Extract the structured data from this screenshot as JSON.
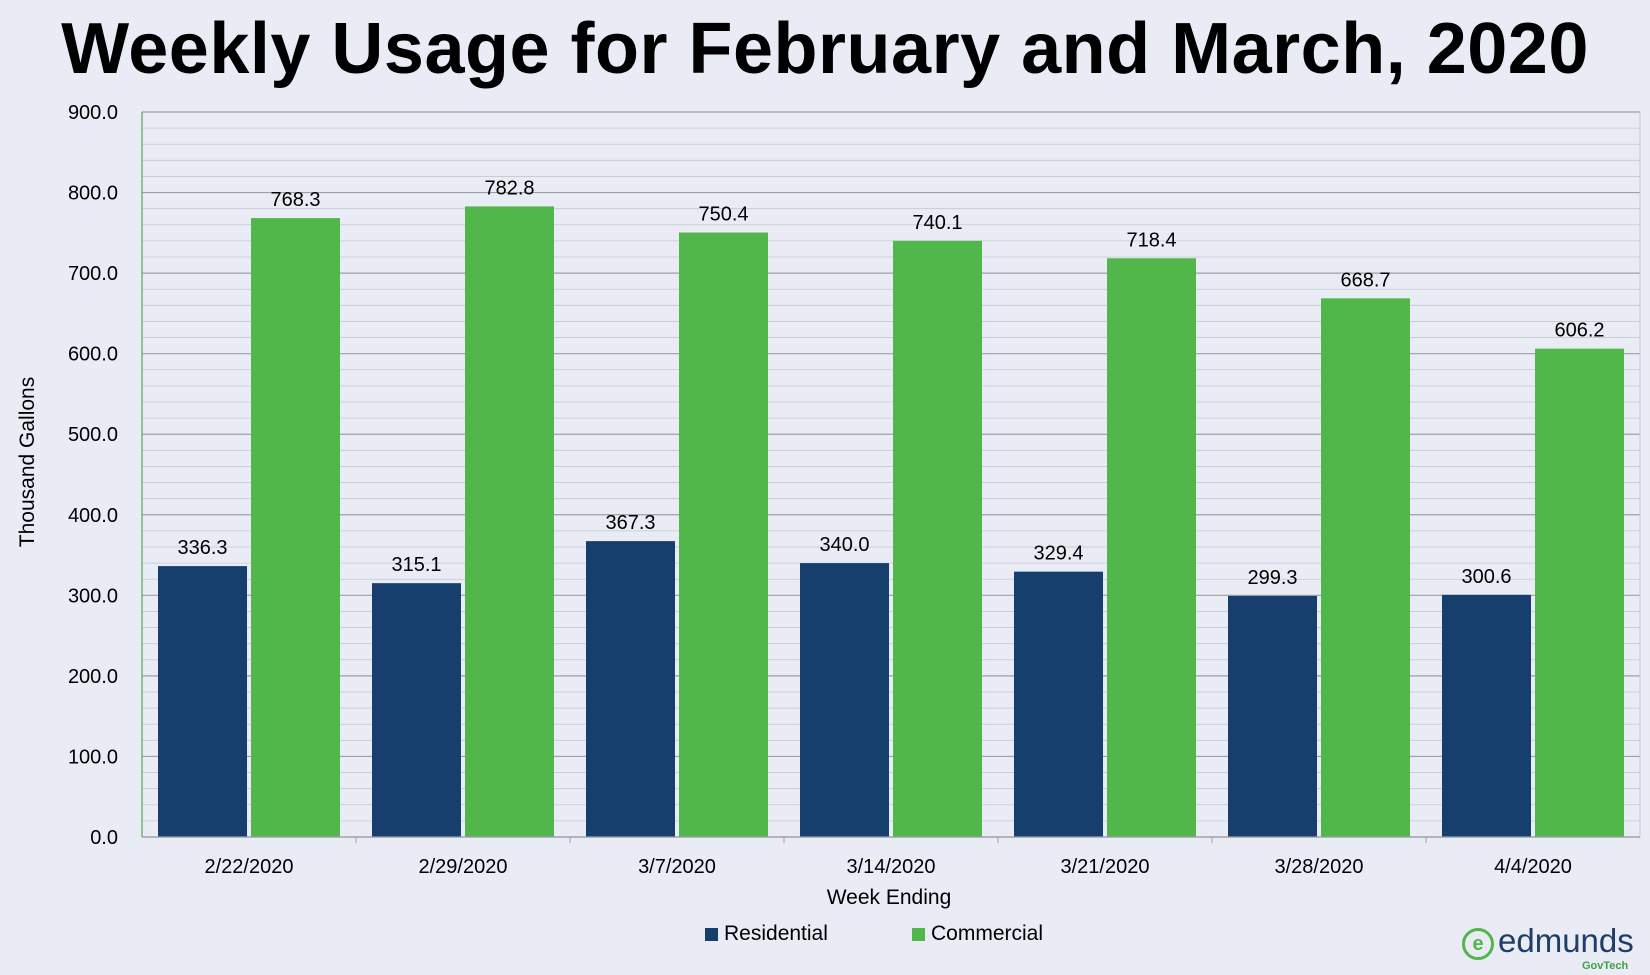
{
  "chart_data": {
    "type": "bar",
    "title": "Weekly Usage for February and March, 2020",
    "xlabel": "Week Ending",
    "ylabel": "Thousand Gallons",
    "ylim": [
      0,
      900
    ],
    "yticks": [
      "0.0",
      "100.0",
      "200.0",
      "300.0",
      "400.0",
      "500.0",
      "600.0",
      "700.0",
      "800.0",
      "900.0"
    ],
    "categories": [
      "2/22/2020",
      "2/29/2020",
      "3/7/2020",
      "3/14/2020",
      "3/21/2020",
      "3/28/2020",
      "4/4/2020"
    ],
    "series": [
      {
        "name": "Residential",
        "color": "#173f6d",
        "values": [
          336.3,
          315.1,
          367.3,
          340.0,
          329.4,
          299.3,
          300.6
        ],
        "labels": [
          "336.3",
          "315.1",
          "367.3",
          "340.0",
          "329.4",
          "299.3",
          "300.6"
        ]
      },
      {
        "name": "Commercial",
        "color": "#52b74a",
        "values": [
          768.3,
          782.8,
          750.4,
          740.1,
          718.4,
          668.7,
          606.2
        ],
        "labels": [
          "768.3",
          "782.8",
          "750.4",
          "740.1",
          "718.4",
          "668.7",
          "606.2"
        ]
      }
    ],
    "grid": true,
    "legend_position": "bottom"
  },
  "branding": {
    "logo_text": "edmunds",
    "logo_sub": "GovTech",
    "logo_icon": "e",
    "logo_color": "#1f3d66",
    "logo_accent": "#52b74a"
  }
}
